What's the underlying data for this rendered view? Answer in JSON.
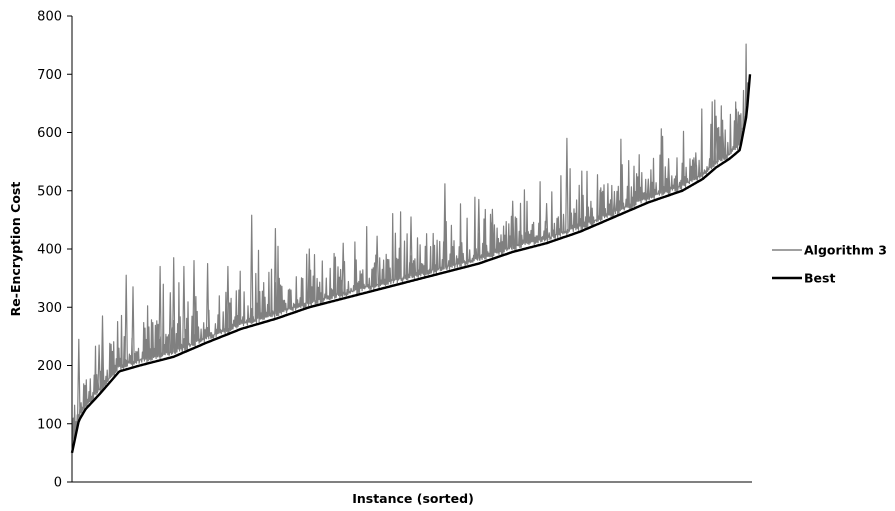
{
  "chart_data": {
    "type": "line",
    "title": "",
    "xlabel": "Instance (sorted)",
    "ylabel": "Re-Encryption Cost",
    "ylim": [
      0,
      800
    ],
    "yticks": [
      0,
      100,
      200,
      300,
      400,
      500,
      600,
      700,
      800
    ],
    "grid": false,
    "legend_position": "right",
    "best_curve": {
      "x": [
        0,
        0.01,
        0.02,
        0.04,
        0.07,
        0.1,
        0.15,
        0.2,
        0.25,
        0.3,
        0.35,
        0.4,
        0.45,
        0.5,
        0.55,
        0.6,
        0.65,
        0.7,
        0.75,
        0.8,
        0.85,
        0.9,
        0.93,
        0.95,
        0.97,
        0.985,
        0.995,
        1.0
      ],
      "y": [
        50,
        105,
        125,
        150,
        190,
        200,
        215,
        240,
        263,
        280,
        300,
        315,
        330,
        345,
        360,
        375,
        395,
        410,
        430,
        455,
        480,
        500,
        520,
        540,
        555,
        570,
        630,
        700
      ]
    },
    "algorithm3_peaks": [
      {
        "x": 0.01,
        "y": 245
      },
      {
        "x": 0.04,
        "y": 235
      },
      {
        "x": 0.045,
        "y": 285
      },
      {
        "x": 0.08,
        "y": 355
      },
      {
        "x": 0.09,
        "y": 335
      },
      {
        "x": 0.13,
        "y": 370
      },
      {
        "x": 0.145,
        "y": 325
      },
      {
        "x": 0.15,
        "y": 385
      },
      {
        "x": 0.165,
        "y": 370
      },
      {
        "x": 0.18,
        "y": 380
      },
      {
        "x": 0.2,
        "y": 375
      },
      {
        "x": 0.23,
        "y": 370
      },
      {
        "x": 0.265,
        "y": 458
      },
      {
        "x": 0.3,
        "y": 435
      },
      {
        "x": 0.35,
        "y": 400
      },
      {
        "x": 0.4,
        "y": 410
      },
      {
        "x": 0.45,
        "y": 422
      },
      {
        "x": 0.5,
        "y": 455
      },
      {
        "x": 0.55,
        "y": 512
      },
      {
        "x": 0.6,
        "y": 485
      },
      {
        "x": 0.62,
        "y": 468
      },
      {
        "x": 0.65,
        "y": 482
      },
      {
        "x": 0.7,
        "y": 478
      },
      {
        "x": 0.73,
        "y": 590
      },
      {
        "x": 0.78,
        "y": 505
      },
      {
        "x": 0.8,
        "y": 490
      },
      {
        "x": 0.85,
        "y": 520
      },
      {
        "x": 0.88,
        "y": 555
      },
      {
        "x": 0.92,
        "y": 565
      },
      {
        "x": 0.95,
        "y": 628
      },
      {
        "x": 0.96,
        "y": 600
      },
      {
        "x": 0.98,
        "y": 640
      },
      {
        "x": 0.99,
        "y": 610
      }
    ],
    "series": [
      {
        "name": "Algorithm 3",
        "color": "#808080"
      },
      {
        "name": "Best",
        "color": "#000000"
      }
    ]
  }
}
